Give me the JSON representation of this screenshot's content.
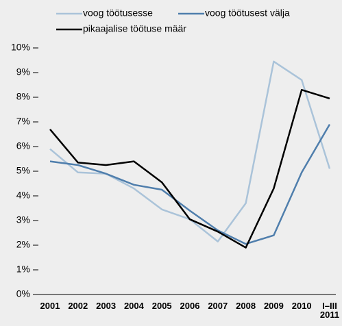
{
  "chart_data": {
    "type": "line",
    "categories": [
      "2001",
      "2002",
      "2003",
      "2004",
      "2005",
      "2006",
      "2007",
      "2008",
      "2009",
      "2010",
      "I–III\n2011"
    ],
    "series": [
      {
        "name": "voog töötusesse",
        "color": "#aac3d9",
        "values": [
          5.9,
          4.95,
          4.9,
          4.3,
          3.45,
          3.05,
          2.15,
          3.7,
          9.45,
          8.7,
          5.1
        ]
      },
      {
        "name": "voog töötusest välja",
        "color": "#4f7eac",
        "values": [
          5.4,
          5.25,
          4.9,
          4.45,
          4.25,
          3.4,
          2.6,
          2.05,
          2.4,
          4.95,
          6.9
        ]
      },
      {
        "name": "pikaajalise töötuse määr",
        "color": "#000000",
        "values": [
          6.7,
          5.35,
          5.25,
          5.4,
          4.55,
          3.05,
          2.55,
          1.9,
          4.3,
          8.3,
          7.95
        ]
      }
    ],
    "ylim": [
      0,
      10
    ],
    "yticks": [
      {
        "value": 0,
        "label": "0%"
      },
      {
        "value": 1,
        "label": "1%"
      },
      {
        "value": 2,
        "label": "2%"
      },
      {
        "value": 3,
        "label": "3%"
      },
      {
        "value": 4,
        "label": "4%"
      },
      {
        "value": 5,
        "label": "5%"
      },
      {
        "value": 6,
        "label": "6%"
      },
      {
        "value": 7,
        "label": "7%"
      },
      {
        "value": 8,
        "label": "8%"
      },
      {
        "value": 9,
        "label": "9%"
      },
      {
        "value": 10,
        "label": "10%"
      }
    ],
    "grid": false
  }
}
